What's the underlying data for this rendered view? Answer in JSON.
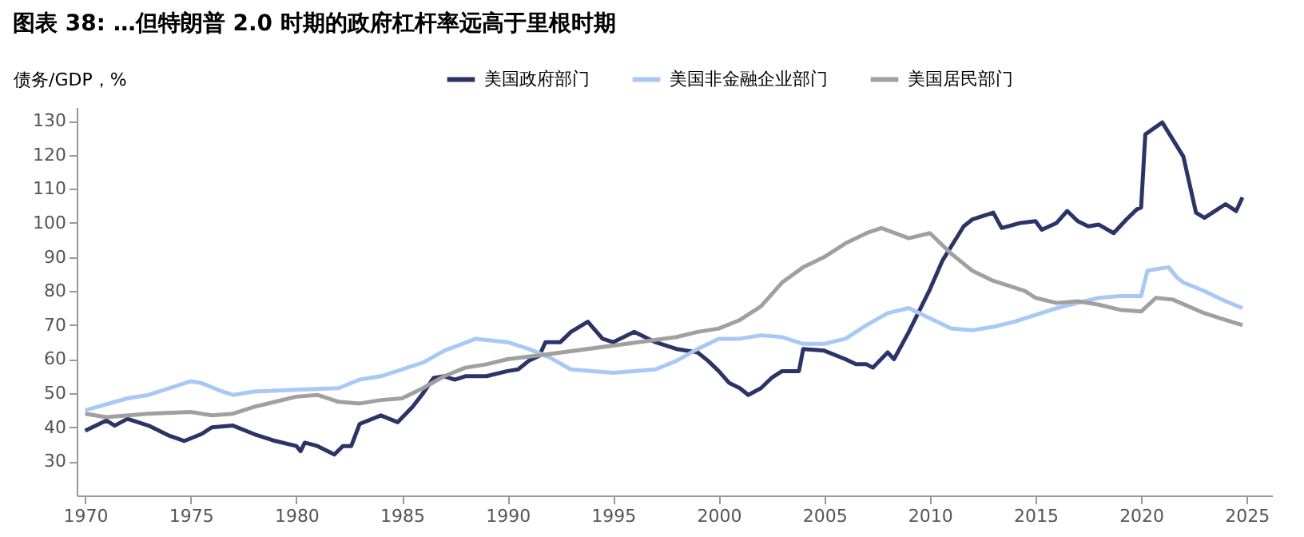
{
  "chart_data": {
    "type": "line",
    "title": "图表 38: …但特朗普 2.0 时期的政府杠杆率远高于里根时期",
    "ylabel": "债务/GDP，%",
    "xlim": [
      1969.6,
      2026.2
    ],
    "xticks": [
      1970,
      1975,
      1980,
      1985,
      1990,
      1995,
      2000,
      2005,
      2010,
      2015,
      2020,
      2025
    ],
    "ylim": [
      20,
      134
    ],
    "yticks": [
      30,
      40,
      50,
      60,
      70,
      80,
      90,
      100,
      110,
      120,
      130
    ],
    "grid": false,
    "legend": "top",
    "marker": "none",
    "line_style": "solid",
    "series": [
      {
        "name": "美国政府部门",
        "color": "#2b3467",
        "x": [
          1970,
          1971,
          1971.4,
          1972,
          1973,
          1974,
          1974.7,
          1975.5,
          1976,
          1977,
          1978,
          1979,
          1980,
          1980.2,
          1980.4,
          1981,
          1981.8,
          1982.2,
          1982.6,
          1983,
          1984,
          1984.8,
          1985.5,
          1986,
          1986.5,
          1987,
          1987.5,
          1988,
          1989,
          1990,
          1990.5,
          1991,
          1991.5,
          1991.8,
          1992.5,
          1993,
          1993.8,
          1994.5,
          1995,
          1996,
          1997,
          1998,
          1999,
          1999.5,
          2000,
          2000.5,
          2001,
          2001.4,
          2002,
          2002.5,
          2003,
          2003.8,
          2004,
          2005,
          2006,
          2006.5,
          2007,
          2007.3,
          2008,
          2008.3,
          2009,
          2010,
          2010.6,
          2011,
          2011.6,
          2012,
          2013,
          2013.4,
          2014.3,
          2015,
          2015.3,
          2016,
          2016.5,
          2017,
          2017.5,
          2018,
          2018.7,
          2019.3,
          2019.8,
          2020,
          2020.2,
          2021,
          2022,
          2022.6,
          2023,
          2024,
          2024.5,
          2024.8
        ],
        "values": [
          39,
          42,
          40.5,
          42.5,
          40.5,
          37.5,
          36,
          38,
          40,
          40.5,
          38,
          36,
          34.5,
          33,
          35.5,
          34.5,
          32,
          34.5,
          34.5,
          41,
          43.5,
          41.5,
          46,
          50,
          54.5,
          55,
          54,
          55,
          55,
          56.5,
          57,
          59.5,
          61,
          65,
          65,
          68,
          71,
          66,
          65,
          68,
          65,
          63,
          62,
          59.5,
          56.5,
          53,
          51.5,
          49.5,
          51.5,
          54.5,
          56.5,
          56.5,
          63,
          62.5,
          60,
          58.5,
          58.5,
          57.5,
          62,
          60,
          68,
          80.5,
          89,
          93,
          99,
          101,
          103,
          98.5,
          100,
          100.5,
          98,
          100,
          103.5,
          100.5,
          99,
          99.5,
          97,
          101,
          104,
          104.5,
          126,
          129.5,
          119.5,
          103,
          101.5,
          105.5,
          103.5,
          107.5
        ]
      },
      {
        "name": "美国非金融企业部门",
        "color": "#a9c8f5",
        "x": [
          1970,
          1972,
          1973,
          1974,
          1975,
          1975.5,
          1976.5,
          1977,
          1978,
          1980,
          1982,
          1983,
          1984,
          1985,
          1986,
          1987,
          1988.5,
          1990,
          1991,
          1992,
          1993,
          1995,
          1997,
          1998,
          1999,
          2000,
          2001,
          2002,
          2003,
          2004,
          2005,
          2006,
          2007,
          2008,
          2009,
          2010,
          2011,
          2012,
          2013,
          2014,
          2015,
          2016,
          2017,
          2018,
          2019,
          2020,
          2020.3,
          2021.3,
          2021.7,
          2022,
          2023,
          2024,
          2024.8
        ],
        "values": [
          45,
          48.5,
          49.5,
          51.5,
          53.5,
          53,
          50.5,
          49.5,
          50.5,
          51,
          51.5,
          54,
          55,
          57,
          59,
          62.5,
          66,
          65,
          63,
          60.5,
          57,
          56,
          57,
          59.5,
          63,
          66,
          66,
          67,
          66.5,
          64.5,
          64.5,
          66,
          70,
          73.5,
          75,
          72,
          69,
          68.5,
          69.5,
          71,
          73,
          75,
          76.5,
          78,
          78.5,
          78.5,
          86,
          87,
          84,
          82.5,
          80,
          77,
          75
        ]
      },
      {
        "name": "美国居民部门",
        "color": "#a0a0a0",
        "x": [
          1970,
          1971,
          1973,
          1975,
          1976,
          1977,
          1978,
          1979,
          1980,
          1981,
          1982,
          1983,
          1984,
          1985,
          1986,
          1987,
          1988,
          1989,
          1990,
          1992,
          1995,
          1998,
          1999,
          2000,
          2001,
          2002,
          2003,
          2004,
          2005,
          2006,
          2007,
          2007.7,
          2009,
          2010,
          2011,
          2012,
          2013,
          2014.5,
          2015,
          2016,
          2017,
          2018,
          2019,
          2020,
          2020.7,
          2021.5,
          2023,
          2024,
          2024.8
        ],
        "values": [
          44,
          43,
          44,
          44.5,
          43.5,
          44,
          46,
          47.5,
          49,
          49.5,
          47.5,
          47,
          48,
          48.5,
          51.5,
          55,
          57.5,
          58.5,
          60,
          61.5,
          64,
          66.5,
          68,
          69,
          71.5,
          75.5,
          82.5,
          87,
          90,
          94,
          97,
          98.5,
          95.5,
          97,
          91,
          86,
          83,
          80,
          78,
          76.5,
          77,
          76,
          74.5,
          74,
          78,
          77.5,
          73.5,
          71.5,
          70
        ]
      }
    ]
  }
}
